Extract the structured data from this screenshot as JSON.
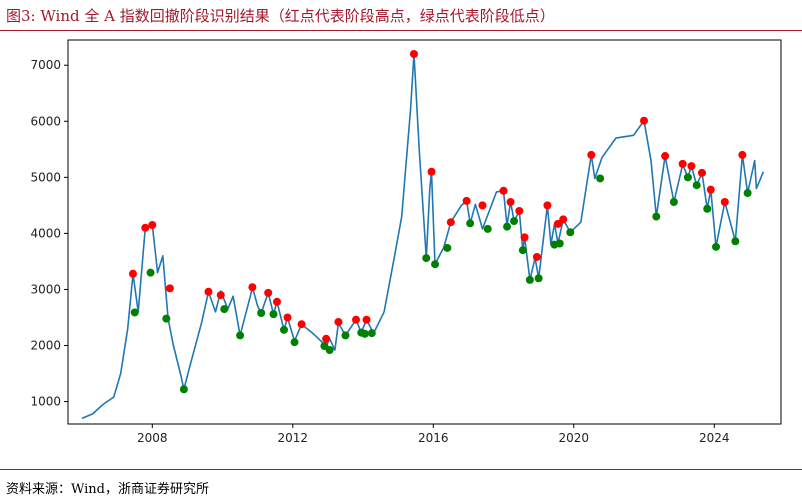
{
  "title": "图3:  Wind 全 A 指数回撤阶段识别结果（红点代表阶段高点，绿点代表阶段低点）",
  "source": "资料来源：Wind，浙商证券研究所",
  "colors": {
    "accent": "#a5182c",
    "line": "#1f77b4",
    "high": "#ff0000",
    "low": "#008000"
  },
  "chart_data": {
    "type": "line",
    "title": "",
    "xlabel": "",
    "ylabel": "",
    "xlim": [
      2005.6,
      2025.9
    ],
    "ylim": [
      600,
      7450
    ],
    "xticks": [
      2008,
      2012,
      2016,
      2020,
      2024
    ],
    "yticks": [
      1000,
      2000,
      3000,
      4000,
      5000,
      6000,
      7000
    ],
    "grid": false,
    "series": [
      {
        "values": [
          [
            2006.0,
            700
          ],
          [
            2006.3,
            780
          ],
          [
            2006.6,
            950
          ],
          [
            2006.9,
            1080
          ],
          [
            2007.1,
            1500
          ],
          [
            2007.3,
            2300
          ],
          [
            2007.45,
            3280
          ],
          [
            2007.6,
            2600
          ],
          [
            2007.8,
            4100
          ],
          [
            2008.0,
            4150
          ],
          [
            2008.15,
            3300
          ],
          [
            2008.3,
            3600
          ],
          [
            2008.45,
            2480
          ],
          [
            2008.6,
            2000
          ],
          [
            2008.8,
            1500
          ],
          [
            2008.9,
            1220
          ],
          [
            2009.1,
            1700
          ],
          [
            2009.4,
            2400
          ],
          [
            2009.6,
            2960
          ],
          [
            2009.8,
            2600
          ],
          [
            2009.95,
            2970
          ],
          [
            2010.15,
            2650
          ],
          [
            2010.3,
            2880
          ],
          [
            2010.5,
            2180
          ],
          [
            2010.8,
            2900
          ],
          [
            2010.85,
            3040
          ],
          [
            2011.0,
            2700
          ],
          [
            2011.1,
            2580
          ],
          [
            2011.3,
            2940
          ],
          [
            2011.45,
            2560
          ],
          [
            2011.55,
            2780
          ],
          [
            2011.75,
            2280
          ],
          [
            2011.85,
            2500
          ],
          [
            2012.05,
            2080
          ],
          [
            2012.25,
            2380
          ],
          [
            2012.6,
            2200
          ],
          [
            2012.95,
            1990
          ],
          [
            2013.05,
            2120
          ],
          [
            2013.2,
            1920
          ],
          [
            2013.3,
            2400
          ],
          [
            2013.5,
            2180
          ],
          [
            2013.8,
            2460
          ],
          [
            2013.95,
            2230
          ],
          [
            2014.1,
            2460
          ],
          [
            2014.3,
            2220
          ],
          [
            2014.6,
            2600
          ],
          [
            2014.9,
            3600
          ],
          [
            2015.1,
            4300
          ],
          [
            2015.35,
            6200
          ],
          [
            2015.45,
            7200
          ],
          [
            2015.6,
            5500
          ],
          [
            2015.8,
            3560
          ],
          [
            2015.9,
            4800
          ],
          [
            2015.95,
            5100
          ],
          [
            2016.05,
            3450
          ],
          [
            2016.3,
            3750
          ],
          [
            2016.5,
            4200
          ],
          [
            2016.8,
            4500
          ],
          [
            2016.95,
            4580
          ],
          [
            2017.05,
            4180
          ],
          [
            2017.2,
            4520
          ],
          [
            2017.4,
            4080
          ],
          [
            2017.8,
            4740
          ],
          [
            2018.0,
            4760
          ],
          [
            2018.1,
            4140
          ],
          [
            2018.2,
            4560
          ],
          [
            2018.3,
            4220
          ],
          [
            2018.45,
            4400
          ],
          [
            2018.55,
            3700
          ],
          [
            2018.6,
            3930
          ],
          [
            2018.75,
            3170
          ],
          [
            2018.9,
            3560
          ],
          [
            2019.0,
            3200
          ],
          [
            2019.25,
            4500
          ],
          [
            2019.35,
            3800
          ],
          [
            2019.45,
            4170
          ],
          [
            2019.55,
            3820
          ],
          [
            2019.7,
            4250
          ],
          [
            2019.9,
            4020
          ],
          [
            2020.2,
            4200
          ],
          [
            2020.5,
            5400
          ],
          [
            2020.6,
            4980
          ],
          [
            2020.8,
            5350
          ],
          [
            2021.2,
            5700
          ],
          [
            2021.7,
            5750
          ],
          [
            2022.0,
            6010
          ],
          [
            2022.2,
            5300
          ],
          [
            2022.35,
            4300
          ],
          [
            2022.6,
            5380
          ],
          [
            2022.85,
            4560
          ],
          [
            2023.1,
            5230
          ],
          [
            2023.25,
            5000
          ],
          [
            2023.35,
            5200
          ],
          [
            2023.5,
            4860
          ],
          [
            2023.65,
            5080
          ],
          [
            2023.8,
            4440
          ],
          [
            2023.9,
            4780
          ],
          [
            2024.05,
            3760
          ],
          [
            2024.3,
            4560
          ],
          [
            2024.5,
            4100
          ],
          [
            2024.6,
            3860
          ],
          [
            2024.8,
            5400
          ],
          [
            2024.95,
            4720
          ],
          [
            2025.15,
            5300
          ],
          [
            2025.2,
            4800
          ],
          [
            2025.4,
            5100
          ]
        ]
      }
    ],
    "highs": [
      [
        2007.45,
        3280
      ],
      [
        2007.8,
        4100
      ],
      [
        2008.0,
        4150
      ],
      [
        2008.5,
        3020
      ],
      [
        2009.6,
        2960
      ],
      [
        2009.95,
        2900
      ],
      [
        2010.85,
        3040
      ],
      [
        2011.3,
        2940
      ],
      [
        2011.55,
        2780
      ],
      [
        2011.85,
        2500
      ],
      [
        2012.25,
        2380
      ],
      [
        2012.95,
        2120
      ],
      [
        2013.3,
        2420
      ],
      [
        2013.8,
        2460
      ],
      [
        2014.1,
        2460
      ],
      [
        2015.45,
        7200
      ],
      [
        2015.95,
        5100
      ],
      [
        2016.5,
        4200
      ],
      [
        2016.95,
        4580
      ],
      [
        2017.4,
        4500
      ],
      [
        2018.0,
        4760
      ],
      [
        2018.2,
        4560
      ],
      [
        2018.45,
        4400
      ],
      [
        2018.6,
        3930
      ],
      [
        2018.95,
        3580
      ],
      [
        2019.25,
        4500
      ],
      [
        2019.55,
        4170
      ],
      [
        2019.7,
        4250
      ],
      [
        2020.5,
        5400
      ],
      [
        2022.0,
        6010
      ],
      [
        2022.6,
        5380
      ],
      [
        2023.1,
        5240
      ],
      [
        2023.35,
        5200
      ],
      [
        2023.65,
        5080
      ],
      [
        2023.9,
        4780
      ],
      [
        2024.3,
        4560
      ],
      [
        2024.8,
        5400
      ]
    ],
    "lows": [
      [
        2007.5,
        2590
      ],
      [
        2007.95,
        3300
      ],
      [
        2008.4,
        2480
      ],
      [
        2008.9,
        1220
      ],
      [
        2010.05,
        2650
      ],
      [
        2010.5,
        2180
      ],
      [
        2011.1,
        2580
      ],
      [
        2011.45,
        2560
      ],
      [
        2011.75,
        2280
      ],
      [
        2012.05,
        2060
      ],
      [
        2012.9,
        1990
      ],
      [
        2013.05,
        1920
      ],
      [
        2013.5,
        2180
      ],
      [
        2013.95,
        2230
      ],
      [
        2014.05,
        2210
      ],
      [
        2014.25,
        2220
      ],
      [
        2015.8,
        3560
      ],
      [
        2016.05,
        3450
      ],
      [
        2016.4,
        3740
      ],
      [
        2017.05,
        4180
      ],
      [
        2017.55,
        4080
      ],
      [
        2018.1,
        4120
      ],
      [
        2018.3,
        4220
      ],
      [
        2018.55,
        3700
      ],
      [
        2018.75,
        3170
      ],
      [
        2019.0,
        3200
      ],
      [
        2019.45,
        3800
      ],
      [
        2019.6,
        3820
      ],
      [
        2019.9,
        4020
      ],
      [
        2020.75,
        4980
      ],
      [
        2022.35,
        4300
      ],
      [
        2022.85,
        4560
      ],
      [
        2023.25,
        5000
      ],
      [
        2023.5,
        4860
      ],
      [
        2023.8,
        4440
      ],
      [
        2024.05,
        3760
      ],
      [
        2024.6,
        3860
      ],
      [
        2024.95,
        4720
      ]
    ]
  }
}
